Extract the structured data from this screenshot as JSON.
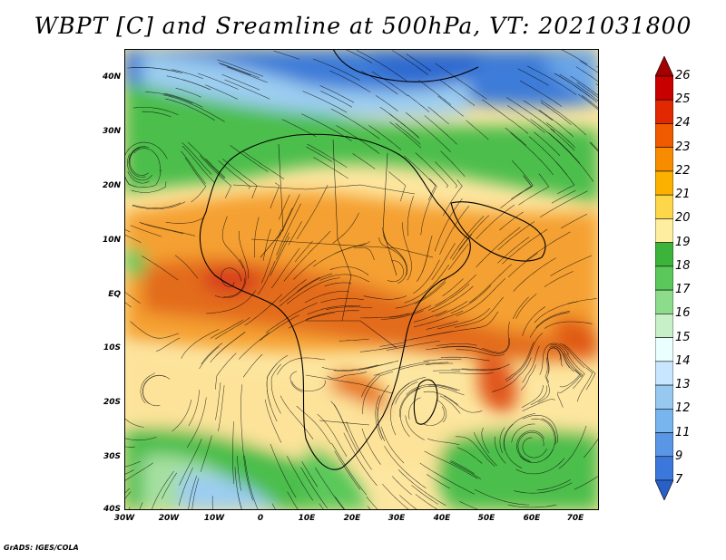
{
  "title": "WBPT [C] and Sreamline at 500hPa, VT: 2021031800",
  "credit": "GrADS: IGES/COLA",
  "lat_labels": [
    "40N",
    "30N",
    "20N",
    "10N",
    "EQ",
    "10S",
    "20S",
    "30S",
    "40S"
  ],
  "lon_labels": [
    "30W",
    "20W",
    "10W",
    "0",
    "10E",
    "20E",
    "30E",
    "40E",
    "50E",
    "60E",
    "70E"
  ],
  "colorbar": {
    "labels": [
      "26",
      "25",
      "24",
      "23",
      "22",
      "21",
      "20",
      "19",
      "18",
      "17",
      "16",
      "15",
      "14",
      "13",
      "12",
      "11",
      "9",
      "7"
    ],
    "colors": [
      "#a50000",
      "#c80000",
      "#e12800",
      "#f05a00",
      "#f78c00",
      "#fcb000",
      "#fdd64a",
      "#fdeea0",
      "#3cb43c",
      "#5ac85a",
      "#8cdc8c",
      "#c8f0c8",
      "#eaffff",
      "#c8e6ff",
      "#96c8f0",
      "#78b4ee",
      "#5a96e6",
      "#3c78dc",
      "#2860c8"
    ]
  },
  "palette": {
    "land_outline": "#000000",
    "hot": "#e05a14",
    "warm": "#f5a030",
    "mild": "#fde39a",
    "green": "#4cbe4c",
    "lightgreen": "#a6e0a0",
    "cold": "#3c7cd8"
  }
}
